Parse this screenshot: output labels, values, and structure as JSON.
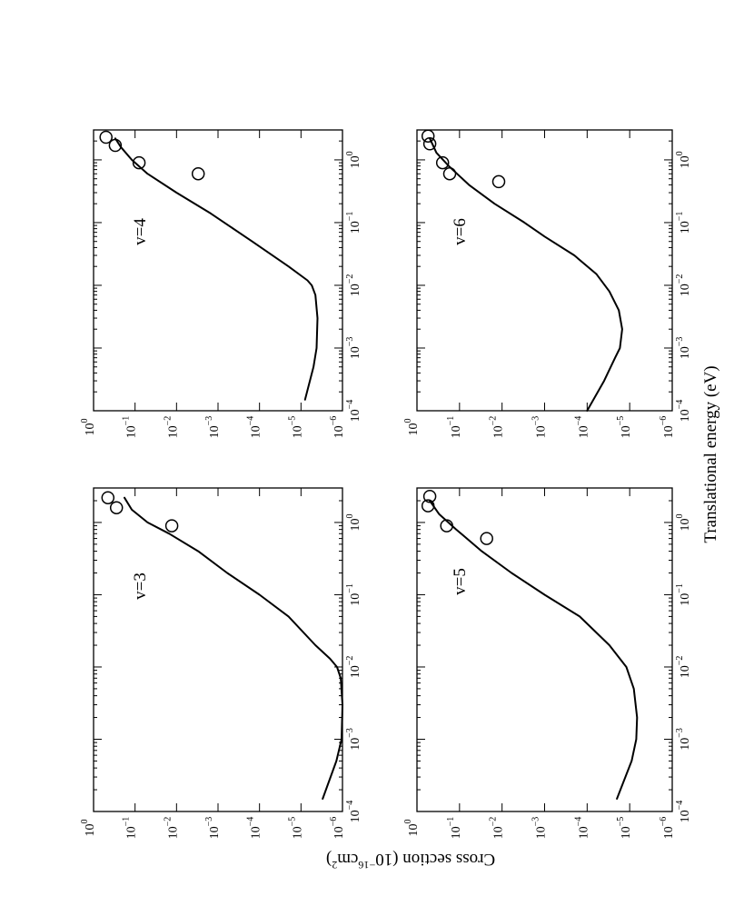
{
  "figure": {
    "xlabel": "Translational energy (eV)",
    "ylabel_main": "Cross section (10",
    "ylabel_exp1": "−16",
    "ylabel_mid": "cm",
    "ylabel_exp2": "2",
    "ylabel_end": ")",
    "orientation": "rotated 90 degrees clockwise (landscape figure on portrait page)"
  },
  "chart_data": [
    {
      "type": "line",
      "label": "v=3",
      "x_scale": "log",
      "y_scale": "log",
      "xlim": [
        0.0001,
        3
      ],
      "ylim": [
        1e-06,
        1
      ],
      "x_ticks": [
        "-4",
        "-3",
        "-2",
        "-1",
        "0"
      ],
      "y_ticks": [
        "0",
        "-1",
        "-2",
        "-3",
        "-4",
        "-5",
        "-6"
      ],
      "series": [
        {
          "kind": "curve",
          "x": [
            0.00015,
            0.0005,
            0.001,
            0.003,
            0.007,
            0.01,
            0.013,
            0.02,
            0.05,
            0.1,
            0.2,
            0.4,
            0.7,
            1.0,
            1.5,
            2.2
          ],
          "y": [
            3e-06,
            1.4e-06,
            1.05e-06,
            1e-06,
            1.1e-06,
            1.35e-06,
            2e-06,
            4.5e-06,
            2e-05,
            0.0001,
            0.0006,
            0.003,
            0.015,
            0.05,
            0.12,
            0.18
          ]
        },
        {
          "kind": "markers",
          "x": [
            0.9,
            1.6,
            2.2
          ],
          "y": [
            0.013,
            0.28,
            0.45
          ]
        }
      ]
    },
    {
      "type": "line",
      "label": "v=4",
      "x_scale": "log",
      "y_scale": "log",
      "xlim": [
        0.0001,
        3
      ],
      "ylim": [
        1e-06,
        1
      ],
      "x_ticks": [
        "-4",
        "-3",
        "-2",
        "-1",
        "0"
      ],
      "y_ticks": [
        "0",
        "-1",
        "-2",
        "-3",
        "-4",
        "-5",
        "-6"
      ],
      "series": [
        {
          "kind": "curve",
          "x": [
            0.00015,
            0.0005,
            0.001,
            0.003,
            0.007,
            0.01,
            0.012,
            0.02,
            0.05,
            0.14,
            0.3,
            0.6,
            1.0,
            1.6,
            2.2
          ],
          "y": [
            8e-06,
            5e-06,
            4.2e-06,
            4e-06,
            4.5e-06,
            5.5e-06,
            7e-06,
            2e-05,
            0.00015,
            0.0015,
            0.01,
            0.05,
            0.12,
            0.22,
            0.3
          ]
        },
        {
          "kind": "markers",
          "x": [
            0.6,
            0.9,
            1.7,
            2.3
          ],
          "y": [
            0.003,
            0.08,
            0.3,
            0.5
          ]
        }
      ]
    },
    {
      "type": "line",
      "label": "v=5",
      "x_scale": "log",
      "y_scale": "log",
      "xlim": [
        0.0001,
        3
      ],
      "ylim": [
        1e-06,
        1
      ],
      "x_ticks": [
        "-4",
        "-3",
        "-2",
        "-1",
        "0"
      ],
      "y_ticks": [
        "0",
        "-1",
        "-2",
        "-3",
        "-4",
        "-5",
        "-6"
      ],
      "series": [
        {
          "kind": "curve",
          "x": [
            0.00015,
            0.0005,
            0.001,
            0.002,
            0.005,
            0.01,
            0.02,
            0.05,
            0.1,
            0.2,
            0.4,
            0.8,
            1.3,
            2.0
          ],
          "y": [
            2e-05,
            9e-06,
            7e-06,
            6.7e-06,
            8e-06,
            1.2e-05,
            3e-05,
            0.00015,
            0.001,
            0.006,
            0.03,
            0.12,
            0.3,
            0.5
          ]
        },
        {
          "kind": "markers",
          "x": [
            0.6,
            0.9,
            1.7,
            2.3
          ],
          "y": [
            0.023,
            0.2,
            0.55,
            0.5
          ]
        }
      ]
    },
    {
      "type": "line",
      "label": "v=6",
      "x_scale": "log",
      "y_scale": "log",
      "xlim": [
        0.0001,
        3
      ],
      "ylim": [
        1e-06,
        1
      ],
      "x_ticks": [
        "-4",
        "-3",
        "-2",
        "-1",
        "0"
      ],
      "y_ticks": [
        "0",
        "-1",
        "-2",
        "-3",
        "-4",
        "-5",
        "-6"
      ],
      "series": [
        {
          "kind": "curve",
          "x": [
            0.0001,
            0.0003,
            0.0007,
            0.001,
            0.002,
            0.004,
            0.008,
            0.015,
            0.03,
            0.06,
            0.1,
            0.2,
            0.4,
            0.8,
            1.3,
            2.2
          ],
          "y": [
            0.0001,
            4e-05,
            2.2e-05,
            1.7e-05,
            1.5e-05,
            1.8e-05,
            3e-05,
            6e-05,
            0.0002,
            0.001,
            0.003,
            0.015,
            0.06,
            0.18,
            0.35,
            0.5
          ]
        },
        {
          "kind": "markers",
          "x": [
            0.45,
            0.6,
            0.9,
            1.8,
            2.4
          ],
          "y": [
            0.012,
            0.17,
            0.25,
            0.5,
            0.55
          ]
        }
      ]
    }
  ]
}
